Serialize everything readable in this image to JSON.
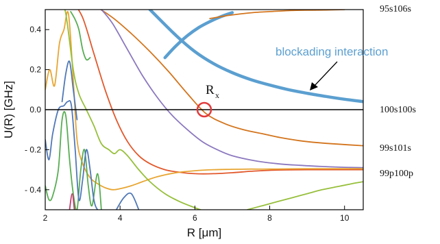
{
  "chart_data": {
    "type": "line",
    "xlabel": "R [μm]",
    "ylabel": "U(R) [GHz]",
    "xlim": [
      2,
      10.5
    ],
    "ylim": [
      -0.5,
      0.5
    ],
    "x_ticks": [
      2,
      4,
      6,
      8,
      10
    ],
    "y_ticks": [
      -0.4,
      -0.2,
      0.0,
      0.2,
      0.4
    ],
    "y_tick_labels": [
      "- 0.4",
      "- 0.2",
      "0.0",
      "0.2",
      "0.4"
    ],
    "grid": false,
    "level_labels": [
      "95s106s",
      "100s100s",
      "99s101s",
      "99p100p"
    ],
    "annotation": "blockading interaction",
    "crossing_label": "R",
    "crossing_subscript": "x",
    "crossing_point": {
      "x": 6.25,
      "y": 0.0
    },
    "colors": {
      "blockade": "#5b9fd0",
      "orange_dark": "#d3741c",
      "orange_light": "#e8a531",
      "red": "#e2582b",
      "purple": "#8b78bf",
      "green_light": "#96bf3a",
      "green": "#57ad52",
      "blue": "#4f78b7",
      "magenta": "#c03a6a",
      "marker": "#e23a3a",
      "zero_line": "#000000"
    },
    "series": [
      {
        "color": "blockade",
        "x": [
          4.8,
          5.5,
          6.0,
          6.5,
          7.0,
          7.5,
          8.0,
          8.5,
          9.0,
          9.5,
          10.0,
          10.5
        ],
        "y": [
          0.5,
          0.37,
          0.29,
          0.23,
          0.185,
          0.15,
          0.123,
          0.1,
          0.082,
          0.066,
          0.052,
          0.04
        ]
      },
      {
        "color": "blockade",
        "x": [
          5.2,
          5.5,
          5.8,
          6.1,
          6.4,
          6.7,
          7.0
        ],
        "y": [
          0.26,
          0.32,
          0.37,
          0.41,
          0.44,
          0.465,
          0.485
        ]
      },
      {
        "color": "orange_dark",
        "x": [
          2.9,
          3.3,
          3.8,
          4.3,
          4.8,
          5.3,
          5.8,
          6.3,
          6.8,
          7.3,
          7.8,
          8.3,
          8.8,
          9.3,
          9.8,
          10.5
        ],
        "y": [
          0.55,
          0.52,
          0.46,
          0.38,
          0.29,
          0.19,
          0.08,
          -0.02,
          -0.07,
          -0.1,
          -0.12,
          -0.14,
          -0.155,
          -0.165,
          -0.172,
          -0.18
        ]
      },
      {
        "color": "orange_dark",
        "x": [
          6.4,
          6.8,
          7.2,
          7.6,
          8.0,
          8.5,
          9.0,
          9.5,
          10.0
        ],
        "y": [
          0.455,
          0.468,
          0.478,
          0.486,
          0.49,
          0.495,
          0.497,
          0.498,
          0.5
        ]
      },
      {
        "color": "purple",
        "x": [
          3.2,
          3.5,
          3.8,
          4.2,
          4.6,
          5.0,
          5.4,
          5.8,
          6.2,
          6.6,
          7.0,
          7.6,
          8.2,
          8.8,
          9.4,
          10.0,
          10.5
        ],
        "y": [
          0.55,
          0.5,
          0.43,
          0.3,
          0.17,
          0.06,
          -0.03,
          -0.1,
          -0.16,
          -0.2,
          -0.23,
          -0.255,
          -0.27,
          -0.278,
          -0.284,
          -0.288,
          -0.29
        ]
      },
      {
        "color": "red",
        "x": [
          2.7,
          3.0,
          3.3,
          3.6,
          3.9,
          4.2,
          4.5,
          4.8,
          5.2,
          5.6,
          6.0,
          6.5,
          7.0,
          7.5,
          8.0,
          8.5,
          9.0,
          9.5,
          10.0,
          10.5
        ],
        "y": [
          0.55,
          0.46,
          0.28,
          0.1,
          -0.05,
          -0.16,
          -0.23,
          -0.27,
          -0.3,
          -0.313,
          -0.32,
          -0.32,
          -0.315,
          -0.308,
          -0.303,
          -0.301,
          -0.3,
          -0.3,
          -0.3,
          -0.3
        ]
      },
      {
        "color": "orange_light",
        "x": [
          2.0,
          2.12,
          2.25,
          2.38,
          2.5,
          2.62,
          2.75,
          2.85,
          3.0,
          3.2,
          3.4,
          3.6,
          3.8,
          4.0,
          4.3,
          4.6,
          5.0,
          5.5,
          6.0,
          6.5,
          7.0,
          7.5,
          8.0,
          8.5,
          9.0,
          9.5,
          10.0,
          10.5
        ],
        "y": [
          0.1,
          0.2,
          0.12,
          0.33,
          0.4,
          0.48,
          0.15,
          -0.15,
          -0.27,
          -0.34,
          -0.37,
          -0.39,
          -0.4,
          -0.395,
          -0.38,
          -0.36,
          -0.335,
          -0.315,
          -0.305,
          -0.3,
          -0.298,
          -0.297,
          -0.297,
          -0.296,
          -0.295,
          -0.295,
          -0.295,
          -0.295
        ]
      },
      {
        "color": "green_light",
        "x": [
          2.4,
          2.55,
          2.75,
          2.9,
          3.1,
          3.3,
          3.5,
          3.7,
          3.85,
          4.0,
          4.2,
          4.5,
          4.8,
          5.2,
          5.6,
          6.0,
          6.3,
          6.6,
          7.0
        ],
        "y": [
          0.55,
          0.48,
          0.2,
          0.08,
          0.0,
          -0.08,
          -0.17,
          -0.2,
          -0.22,
          -0.2,
          -0.23,
          -0.3,
          -0.36,
          -0.42,
          -0.46,
          -0.49,
          -0.51,
          -0.53,
          -0.55
        ]
      },
      {
        "color": "green_light",
        "x": [
          7.4,
          7.8,
          8.2,
          8.6,
          9.0,
          9.4,
          9.8,
          10.2,
          10.5
        ],
        "y": [
          -0.5,
          -0.48,
          -0.46,
          -0.44,
          -0.42,
          -0.4,
          -0.385,
          -0.37,
          -0.36
        ]
      },
      {
        "color": "green",
        "x": [
          2.0,
          2.1,
          2.2,
          2.35,
          2.45,
          2.55,
          2.65,
          2.75,
          2.85,
          2.95,
          3.05,
          3.15,
          3.25,
          3.4,
          3.5
        ],
        "y": [
          -0.38,
          -0.45,
          -0.43,
          -0.3,
          -0.05,
          -0.03,
          -0.25,
          -0.42,
          -0.5,
          -0.3,
          -0.2,
          -0.38,
          -0.48,
          -0.32,
          -0.5
        ]
      },
      {
        "color": "green",
        "x": [
          2.68,
          2.8,
          2.9,
          3.0,
          3.1,
          3.2
        ],
        "y": [
          0.49,
          0.45,
          0.4,
          0.3,
          0.25,
          0.26
        ]
      },
      {
        "color": "blue",
        "x": [
          2.0,
          2.1,
          2.2,
          2.35,
          2.5,
          2.6,
          2.7,
          2.8,
          2.9,
          3.0,
          3.1,
          3.2,
          3.3,
          3.4,
          3.5
        ],
        "y": [
          -0.15,
          -0.25,
          -0.12,
          0.0,
          0.02,
          0.04,
          0.02,
          -0.2,
          -0.45,
          -0.35,
          -0.2,
          -0.3,
          -0.45,
          -0.5,
          -0.5
        ]
      },
      {
        "color": "blue",
        "x": [
          2.45,
          2.55,
          2.65,
          2.75,
          2.85
        ],
        "y": [
          0.04,
          0.18,
          0.24,
          0.1,
          -0.05
        ]
      },
      {
        "color": "blue",
        "x": [
          3.9,
          4.1,
          4.3,
          4.5
        ],
        "y": [
          -0.5,
          -0.44,
          -0.42,
          -0.5
        ]
      },
      {
        "color": "magenta",
        "x": [
          2.65,
          2.72,
          2.78
        ],
        "y": [
          -0.5,
          -0.42,
          -0.5
        ]
      }
    ]
  }
}
